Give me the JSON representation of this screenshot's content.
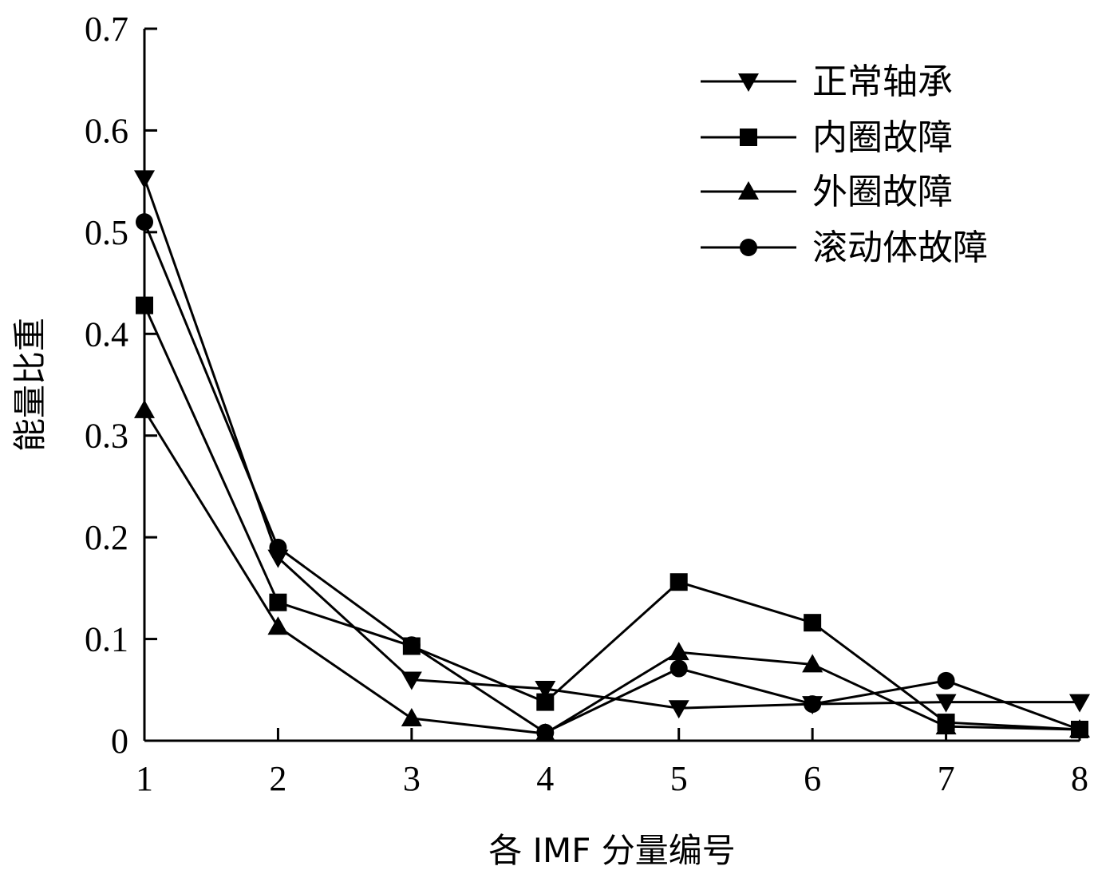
{
  "chart_data": {
    "type": "line",
    "xlabel": "各 IMF 分量编号",
    "ylabel": "能量比重",
    "x": [
      1,
      2,
      3,
      4,
      5,
      6,
      7,
      8
    ],
    "xlim": [
      1,
      8
    ],
    "ylim": [
      0,
      0.7
    ],
    "yticks": [
      "0",
      "0.1",
      "0.2",
      "0.3",
      "0.4",
      "0.5",
      "0.6",
      "0.7"
    ],
    "xticks": [
      "1",
      "2",
      "3",
      "4",
      "5",
      "6",
      "7",
      "8"
    ],
    "grid": false,
    "legend_position": "top-right",
    "series": [
      {
        "name": "正常轴承",
        "marker": "triangle-down",
        "values": [
          0.553,
          0.18,
          0.06,
          0.051,
          0.032,
          0.036,
          0.038,
          0.038
        ]
      },
      {
        "name": "内圈故障",
        "marker": "square",
        "values": [
          0.428,
          0.136,
          0.093,
          0.038,
          0.156,
          0.116,
          0.018,
          0.011
        ]
      },
      {
        "name": "外圈故障",
        "marker": "triangle-up",
        "values": [
          0.325,
          0.112,
          0.022,
          0.007,
          0.087,
          0.075,
          0.014,
          0.011
        ]
      },
      {
        "name": "滚动体故障",
        "marker": "circle",
        "values": [
          0.51,
          0.19,
          0.094,
          0.008,
          0.071,
          0.036,
          0.059,
          0.011
        ]
      }
    ]
  }
}
